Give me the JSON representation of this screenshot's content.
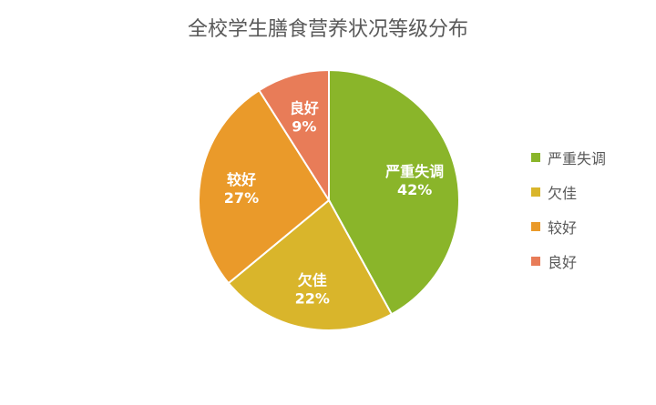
{
  "chart_data": {
    "type": "pie",
    "title": "全校学生膳食营养状况等级分布",
    "categories": [
      "严重失调",
      "欠佳",
      "较好",
      "良好"
    ],
    "values": [
      42,
      22,
      27,
      9
    ],
    "value_labels": [
      "42%",
      "22%",
      "27%",
      "9%"
    ],
    "colors": [
      "#8ab52a",
      "#d9b52b",
      "#ea9a2a",
      "#e87c58"
    ],
    "legend": "right"
  }
}
